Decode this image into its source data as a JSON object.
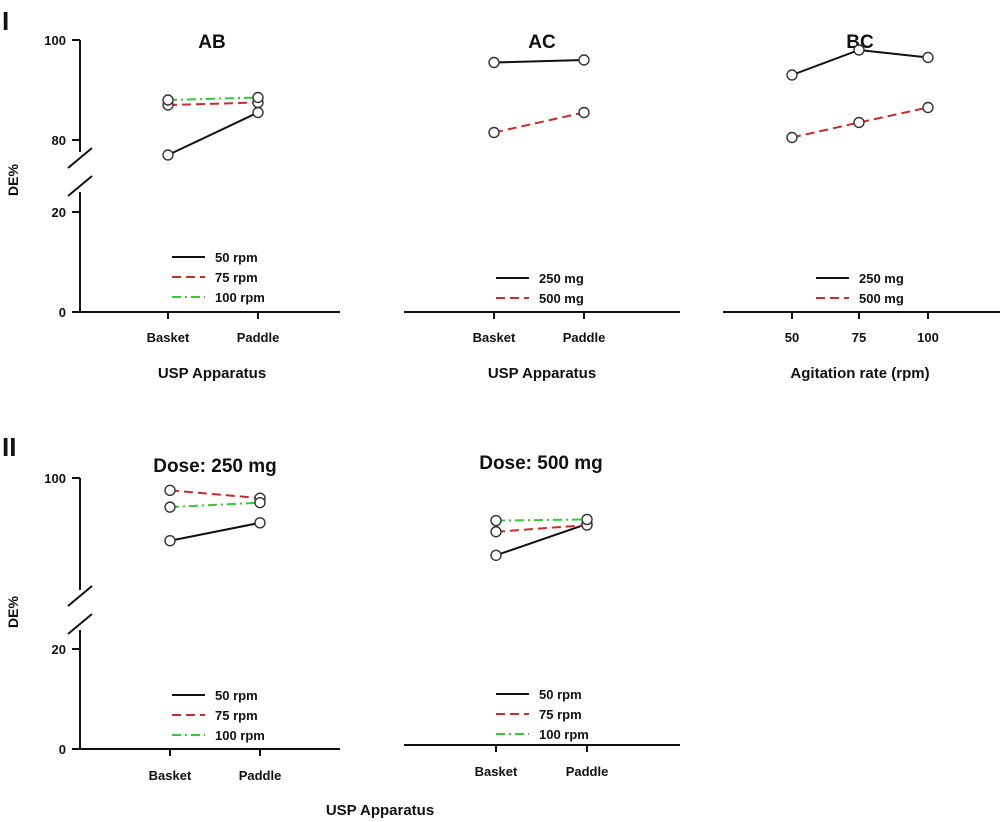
{
  "panels": {
    "top_label": "I",
    "bottom_label": "II"
  },
  "chart_data": [
    {
      "type": "line",
      "title": "AB",
      "xlabel": "USP Apparatus",
      "ylabel": "DE%",
      "categories": [
        "Basket",
        "Paddle"
      ],
      "y_ticks": [
        0,
        20,
        80,
        100
      ],
      "axis_break": [
        20,
        80
      ],
      "series": [
        {
          "name": "50 rpm",
          "values": [
            77,
            85.5
          ],
          "color": "#111111",
          "dash": "solid"
        },
        {
          "name": "75 rpm",
          "values": [
            87,
            87.5
          ],
          "color": "#cc2b2b",
          "dash": "dashed"
        },
        {
          "name": "100 rpm",
          "values": [
            88,
            88.5
          ],
          "color": "#33cc33",
          "dash": "dash-dot"
        }
      ]
    },
    {
      "type": "line",
      "title": "AC",
      "xlabel": "USP Apparatus",
      "ylabel": "",
      "categories": [
        "Basket",
        "Paddle"
      ],
      "y_ticks": [],
      "axis_break": [
        20,
        80
      ],
      "series": [
        {
          "name": "250 mg",
          "values": [
            95.5,
            96
          ],
          "color": "#111111",
          "dash": "solid"
        },
        {
          "name": "500 mg",
          "values": [
            81.5,
            85.5
          ],
          "color": "#cc2b2b",
          "dash": "dashed"
        }
      ]
    },
    {
      "type": "line",
      "title": "BC",
      "xlabel": "Agitation rate (rpm)",
      "ylabel": "",
      "categories": [
        "50",
        "75",
        "100"
      ],
      "y_ticks": [],
      "axis_break": [
        20,
        80
      ],
      "series": [
        {
          "name": "250 mg",
          "values": [
            93,
            98,
            96.5
          ],
          "color": "#111111",
          "dash": "solid"
        },
        {
          "name": "500 mg",
          "values": [
            80.5,
            83.5,
            86.5
          ],
          "color": "#cc2b2b",
          "dash": "dashed"
        }
      ]
    },
    {
      "type": "line",
      "title": "Dose: 250 mg",
      "xlabel": "USP Apparatus",
      "ylabel": "DE%",
      "categories": [
        "Basket",
        "Paddle"
      ],
      "y_ticks": [
        0,
        20,
        100
      ],
      "axis_break": [
        20,
        50
      ],
      "series": [
        {
          "name": "50 rpm",
          "values": [
            72,
            80
          ],
          "color": "#111111",
          "dash": "solid"
        },
        {
          "name": "75 rpm",
          "values": [
            94.5,
            91
          ],
          "color": "#cc2b2b",
          "dash": "dashed"
        },
        {
          "name": "100 rpm",
          "values": [
            87,
            89
          ],
          "color": "#33cc33",
          "dash": "dash-dot"
        }
      ]
    },
    {
      "type": "line",
      "title": "Dose: 500 mg",
      "xlabel": "",
      "ylabel": "",
      "categories": [
        "Basket",
        "Paddle"
      ],
      "y_ticks": [],
      "axis_break": [
        20,
        50
      ],
      "series": [
        {
          "name": "50 rpm",
          "values": [
            65.5,
            79.5
          ],
          "color": "#111111",
          "dash": "solid"
        },
        {
          "name": "75 rpm",
          "values": [
            76,
            79
          ],
          "color": "#cc2b2b",
          "dash": "dashed"
        },
        {
          "name": "100 rpm",
          "values": [
            81,
            81.5
          ],
          "color": "#33cc33",
          "dash": "dash-dot"
        }
      ]
    }
  ]
}
